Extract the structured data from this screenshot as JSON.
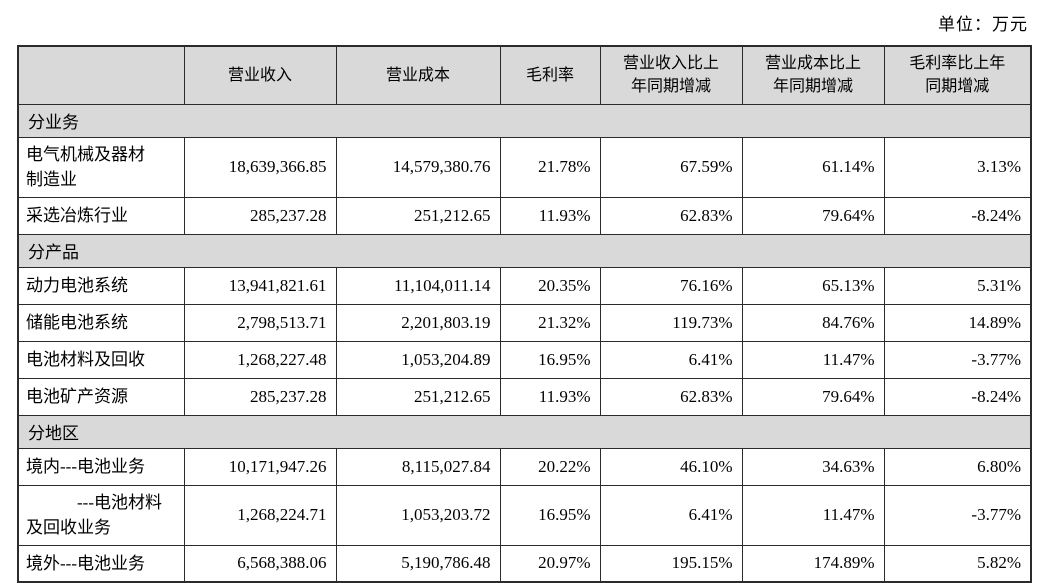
{
  "unit_label": "单位：万元",
  "table": {
    "headers": {
      "revenue": "营业收入",
      "cost": "营业成本",
      "margin": "毛利率",
      "revenue_change": "营业收入比上\n年同期增减",
      "cost_change": "营业成本比上\n年同期增减",
      "margin_change": "毛利率比上年\n同期增减"
    },
    "sections": [
      {
        "label": "分业务",
        "rows": [
          {
            "name": "电气机械及器材\n制造业",
            "values": [
              "18,639,366.85",
              "14,579,380.76",
              "21.78%",
              "67.59%",
              "61.14%",
              "3.13%"
            ]
          },
          {
            "name": "采选冶炼行业",
            "values": [
              "285,237.28",
              "251,212.65",
              "11.93%",
              "62.83%",
              "79.64%",
              "-8.24%"
            ]
          }
        ]
      },
      {
        "label": "分产品",
        "rows": [
          {
            "name": "动力电池系统",
            "values": [
              "13,941,821.61",
              "11,104,011.14",
              "20.35%",
              "76.16%",
              "65.13%",
              "5.31%"
            ]
          },
          {
            "name": "储能电池系统",
            "values": [
              "2,798,513.71",
              "2,201,803.19",
              "21.32%",
              "119.73%",
              "84.76%",
              "14.89%"
            ]
          },
          {
            "name": "电池材料及回收",
            "values": [
              "1,268,227.48",
              "1,053,204.89",
              "16.95%",
              "6.41%",
              "11.47%",
              "-3.77%"
            ]
          },
          {
            "name": "电池矿产资源",
            "values": [
              "285,237.28",
              "251,212.65",
              "11.93%",
              "62.83%",
              "79.64%",
              "-8.24%"
            ]
          }
        ]
      },
      {
        "label": "分地区",
        "rows": [
          {
            "name": "境内---电池业务",
            "values": [
              "10,171,947.26",
              "8,115,027.84",
              "20.22%",
              "46.10%",
              "34.63%",
              "6.80%"
            ]
          },
          {
            "name": "---电池材料\n及回收业务",
            "values": [
              "1,268,224.71",
              "1,053,203.72",
              "16.95%",
              "6.41%",
              "11.47%",
              "-3.77%"
            ]
          },
          {
            "name": "境外---电池业务",
            "values": [
              "6,568,388.06",
              "5,190,786.48",
              "20.97%",
              "195.15%",
              "174.89%",
              "5.82%"
            ]
          }
        ]
      }
    ]
  }
}
